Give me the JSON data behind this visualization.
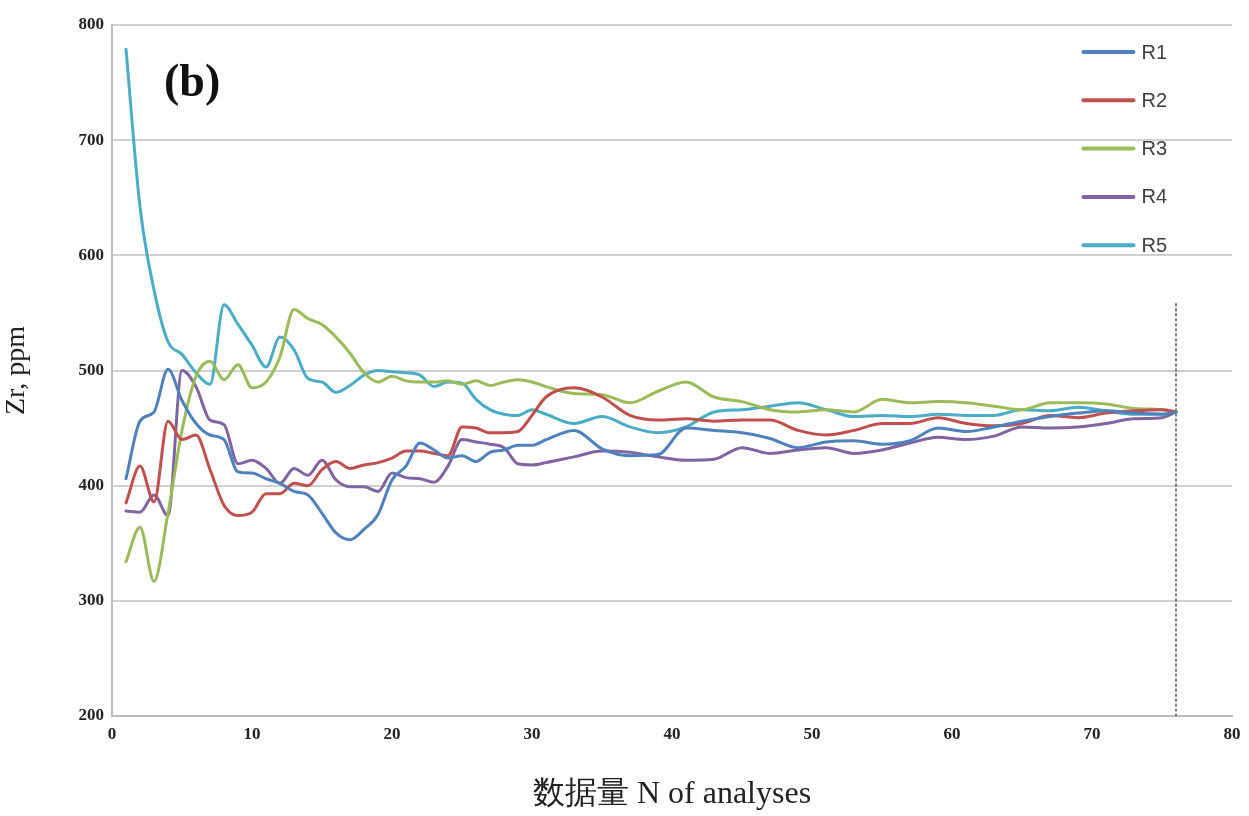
{
  "chart_data": {
    "type": "line",
    "xlabel": "数据量 N of analyses",
    "ylabel": "Zr, ppm",
    "annotations": [
      "(b)"
    ],
    "x": [
      1,
      2,
      3,
      4,
      5,
      6,
      7,
      8,
      9,
      10,
      11,
      12,
      13,
      14,
      15,
      16,
      17,
      18,
      19,
      20,
      21,
      22,
      23,
      24,
      25,
      26,
      27,
      28,
      29,
      30,
      31,
      33,
      35,
      37,
      39,
      41,
      43,
      45,
      47,
      49,
      51,
      53,
      55,
      57,
      59,
      61,
      63,
      65,
      67,
      69,
      71,
      73,
      75,
      76
    ],
    "xlim": [
      0,
      80
    ],
    "xticks": [
      0,
      10,
      20,
      30,
      40,
      50,
      60,
      70,
      80
    ],
    "ylim": [
      200,
      800
    ],
    "yticks": [
      200,
      300,
      400,
      500,
      600,
      700,
      800
    ],
    "grid": "y",
    "legend": "top right",
    "series": [
      {
        "name": "R1",
        "color": "#4f81bd",
        "values": [
          406,
          456,
          464,
          501,
          474,
          454,
          444,
          440,
          412,
          411,
          406,
          402,
          395,
          392,
          376,
          359,
          353,
          362,
          375,
          405,
          417,
          437,
          431,
          424,
          426,
          421,
          429,
          431,
          435,
          435,
          440,
          448,
          432,
          426,
          427,
          450,
          448,
          446,
          441,
          433,
          438,
          439,
          436,
          439,
          450,
          447,
          451,
          456,
          460,
          463,
          465,
          463,
          462,
          464
        ]
      },
      {
        "name": "R2",
        "color": "#c0504d",
        "values": [
          385,
          417,
          386,
          456,
          440,
          444,
          414,
          383,
          374,
          377,
          393,
          393,
          402,
          400,
          414,
          421,
          415,
          418,
          420,
          424,
          430,
          430,
          428,
          426,
          451,
          450,
          446,
          446,
          447,
          461,
          477,
          485,
          477,
          461,
          457,
          458,
          456,
          457,
          457,
          448,
          444,
          448,
          454,
          454,
          459,
          454,
          452,
          454,
          461,
          459,
          463,
          465,
          466,
          464
        ]
      },
      {
        "name": "R3",
        "color": "#9bbb59",
        "values": [
          334,
          364,
          317,
          376,
          448,
          495,
          508,
          492,
          505,
          485,
          490,
          512,
          553,
          545,
          540,
          529,
          515,
          498,
          490,
          495,
          491,
          490,
          490,
          491,
          488,
          491,
          487,
          490,
          492,
          490,
          486,
          480,
          479,
          472,
          482,
          490,
          477,
          473,
          466,
          464,
          466,
          464,
          475,
          472,
          473,
          472,
          469,
          466,
          472,
          472,
          471,
          467,
          466,
          464
        ]
      },
      {
        "name": "R4",
        "color": "#8064a2",
        "values": [
          378,
          377,
          392,
          374,
          500,
          486,
          457,
          453,
          419,
          422,
          415,
          402,
          415,
          409,
          422,
          405,
          399,
          399,
          395,
          411,
          407,
          406,
          403,
          417,
          440,
          438,
          436,
          433,
          419,
          418,
          420,
          425,
          430,
          429,
          425,
          422,
          423,
          433,
          428,
          431,
          433,
          428,
          431,
          437,
          442,
          440,
          443,
          451,
          450,
          451,
          454,
          458,
          459,
          464
        ]
      },
      {
        "name": "R5",
        "color": "#4bacc6",
        "values": [
          779,
          642,
          570,
          525,
          514,
          498,
          488,
          557,
          540,
          522,
          503,
          529,
          518,
          493,
          490,
          481,
          487,
          496,
          500,
          499,
          498,
          496,
          486,
          490,
          489,
          475,
          466,
          462,
          461,
          466,
          462,
          454,
          460,
          451,
          446,
          451,
          464,
          466,
          469,
          472,
          466,
          460,
          461,
          460,
          462,
          461,
          461,
          466,
          465,
          468,
          465,
          462,
          462,
          464
        ]
      },
      {
        "type": "line",
        "x": [
          76,
          76
        ],
        "values": [
          200,
          560
        ],
        "color": "#555555",
        "line_style": "dotted"
      }
    ]
  }
}
